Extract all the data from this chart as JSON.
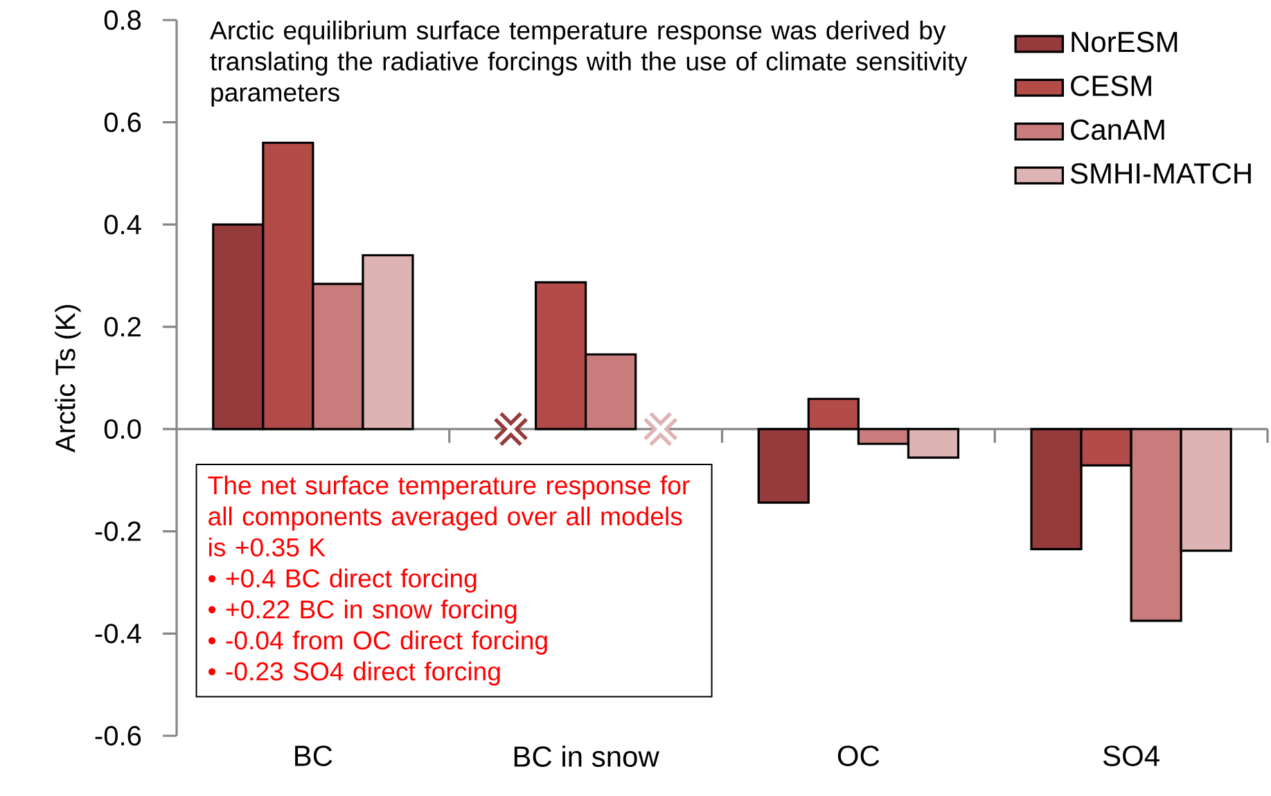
{
  "chart_data": {
    "type": "bar",
    "ylabel": "Arctic Ts (K)",
    "categories": [
      "BC",
      "BC in snow",
      "OC",
      "SO4"
    ],
    "series": [
      {
        "name": "NorESM",
        "color": "#953b3b",
        "values": [
          0.4,
          null,
          -0.144,
          -0.235
        ]
      },
      {
        "name": "CESM",
        "color": "#b34b48",
        "values": [
          0.56,
          0.287,
          0.059,
          -0.071
        ]
      },
      {
        "name": "CanAM",
        "color": "#c97c7c",
        "values": [
          0.284,
          0.146,
          -0.029,
          -0.375
        ]
      },
      {
        "name": "SMHI-MATCH",
        "color": "#deb3b3",
        "values": [
          0.34,
          null,
          -0.056,
          -0.238
        ]
      }
    ],
    "ylim": [
      -0.6,
      0.8
    ],
    "yticks": [
      -0.6,
      -0.4,
      -0.2,
      {
        "value": 0,
        "label": "0.0"
      },
      0.2,
      0.4,
      0.6,
      0.8
    ],
    "legend": "top right",
    "annotations": [
      "Arctic equilibrium surface temperature response was derived by translating the radiative forcings with the use of climate sensitivity parameters",
      "The net surface temperature response for all components averaged over all models is +0.35 K",
      "•  +0.4 BC direct forcing",
      "•  +0.22 BC in snow forcing",
      "•  -0.04 from OC direct forcing",
      "•  -0.23 SO4 direct forcing"
    ]
  }
}
